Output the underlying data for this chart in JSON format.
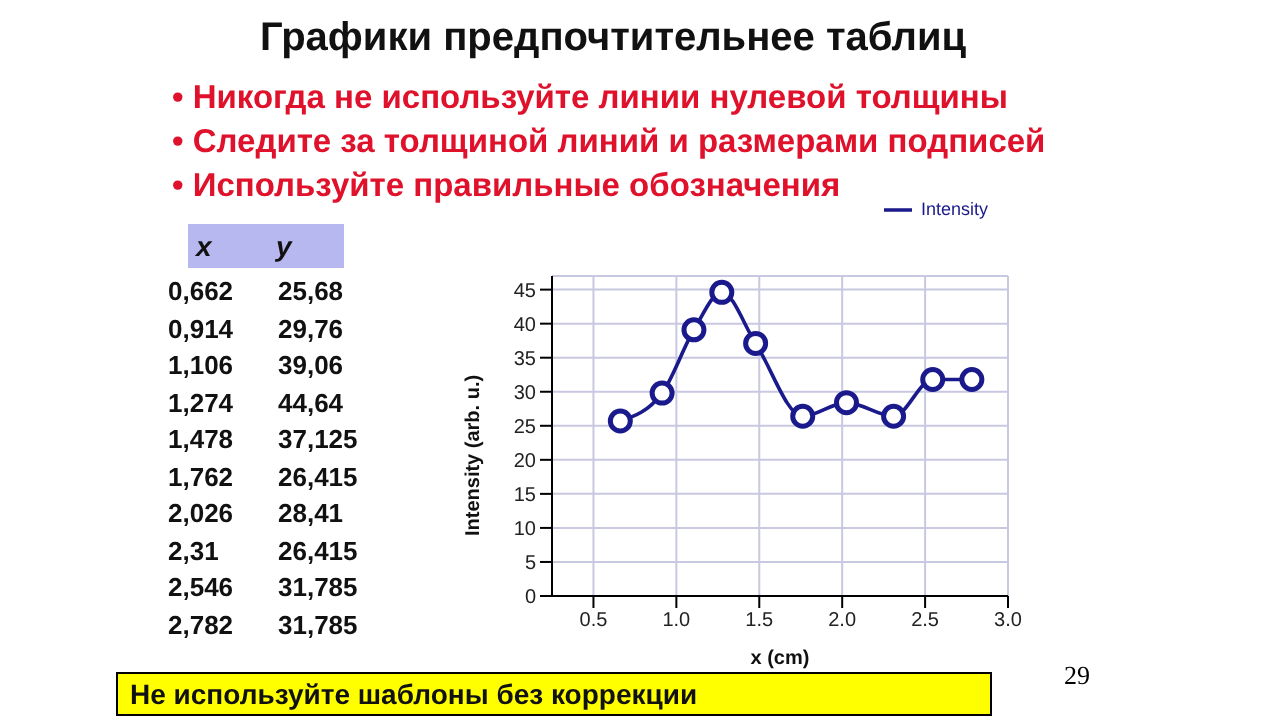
{
  "chart_data": {
    "type": "line",
    "title": "Графики предпочтительнее таблиц",
    "annotations": [
      "• Никогда не используйте линии нулевой толщины",
      "• Следите за толщиной линий и размерами подписей",
      "• Используйте правильные обозначения",
      "x",
      "y",
      "0,662",
      "25,68",
      "0,914",
      "29,76",
      "1,106",
      "39,06",
      "1,274",
      "44,64",
      "1,478",
      "37,125",
      "1,762",
      "26,415",
      "2,026",
      "28,41",
      "2,31",
      "26,415",
      "2,546",
      "31,785",
      "2,782",
      "31,785",
      "Не используйте шаблоны без коррекции",
      "29"
    ],
    "x": [
      0.662,
      0.914,
      1.106,
      1.274,
      1.478,
      1.762,
      2.026,
      2.31,
      2.546,
      2.782
    ],
    "series": [
      {
        "name": "Intensity",
        "color": "#1a1a8c",
        "values": [
          25.7,
          29.8,
          39.1,
          44.6,
          37.1,
          26.4,
          28.4,
          26.4,
          31.8,
          31.8
        ]
      }
    ],
    "xlabel": "x (cm)",
    "ylabel": "Intensity (arb. u.)",
    "xlim": [
      0.25,
      3.0
    ],
    "xticks": [
      0.5,
      {
        "value": 1,
        "label": "1.0"
      },
      1.5,
      {
        "value": 2,
        "label": "2.0"
      },
      2.5,
      {
        "value": 3,
        "label": "3.0"
      }
    ],
    "ylim": [
      0,
      47
    ],
    "yticks": [
      0,
      5,
      10,
      15,
      20,
      25,
      30,
      35,
      40,
      45
    ],
    "grid": true,
    "legend": "top right",
    "marker": "circle",
    "line_style": "solid"
  }
}
